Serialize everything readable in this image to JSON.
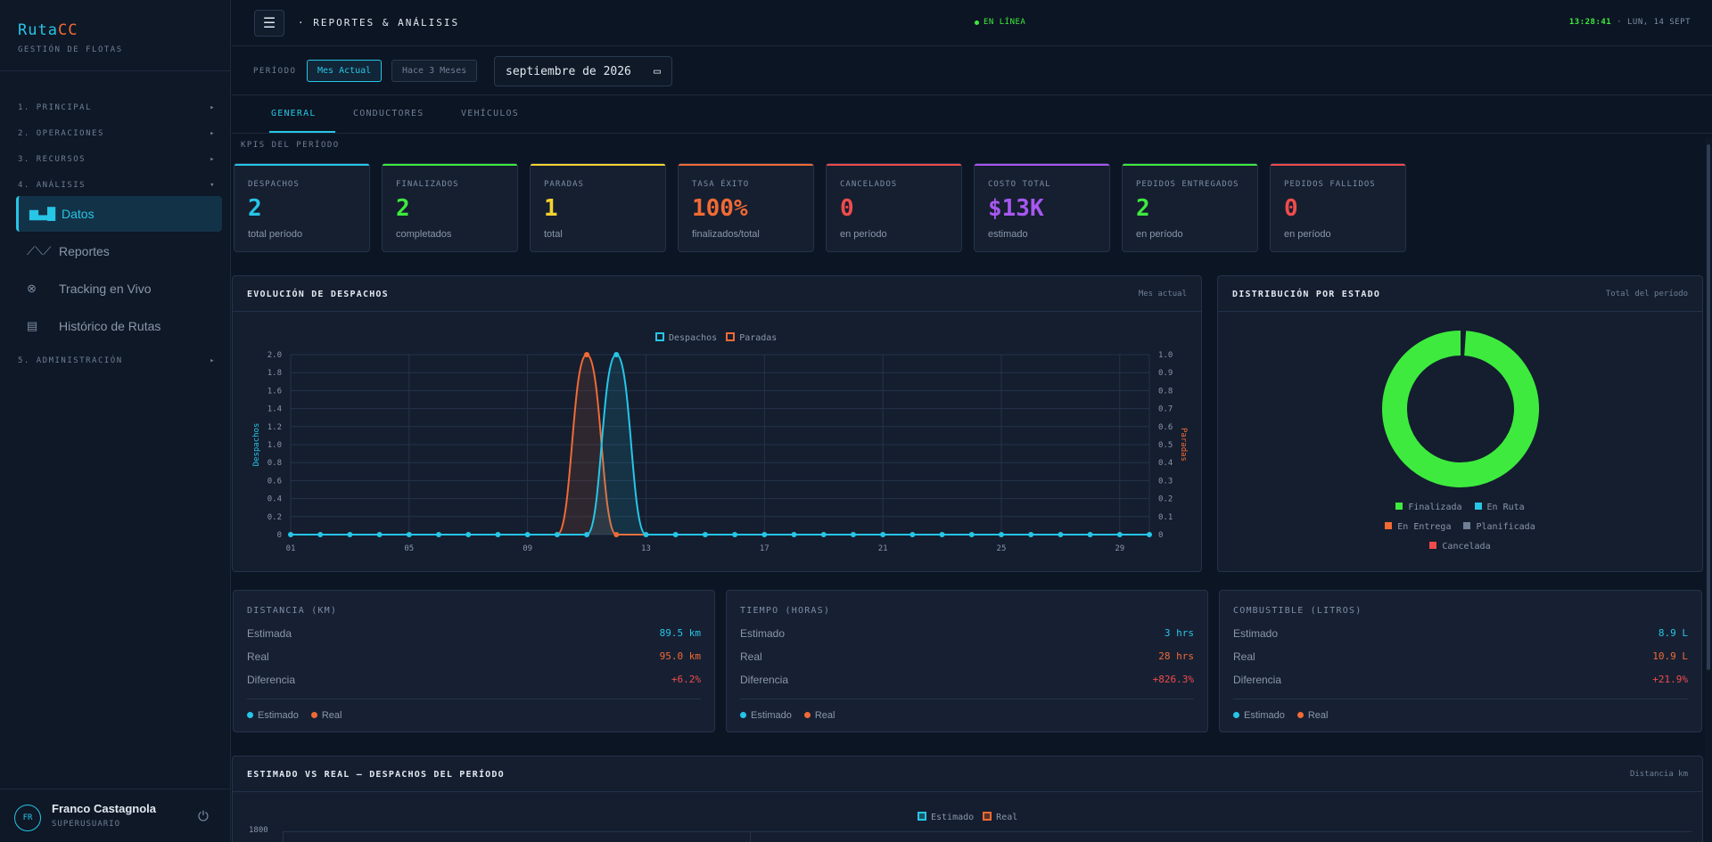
{
  "brand": {
    "name_a": "Ruta",
    "name_b": "CC",
    "subtitle": "GESTIÓN DE FLOTAS"
  },
  "sidebar": {
    "sections": [
      {
        "label": "1. PRINCIPAL",
        "arrow": "▸"
      },
      {
        "label": "2. OPERACIONES",
        "arrow": "▸"
      },
      {
        "label": "3. RECURSOS",
        "arrow": "▸"
      },
      {
        "label": "4. ANÁLISIS",
        "arrow": "▾"
      },
      {
        "label": "5. ADMINISTRACIÓN",
        "arrow": "▸"
      }
    ],
    "items": [
      {
        "label": "Datos",
        "icon": "bar-chart-icon",
        "active": true
      },
      {
        "label": "Reportes",
        "icon": "line-chart-icon",
        "active": false
      },
      {
        "label": "Tracking en Vivo",
        "icon": "satellite-icon",
        "active": false
      },
      {
        "label": "Histórico de Rutas",
        "icon": "map-icon",
        "active": false
      }
    ],
    "user": {
      "initials": "FR",
      "name": "Franco Castagnola",
      "role": "SUPERUSUARIO"
    }
  },
  "header": {
    "menu_icon": "☰",
    "title": "· REPORTES & ANÁLISIS",
    "status": "EN LÍNEA",
    "time": "13:28:41",
    "date": "· LUN, 14 SEPT"
  },
  "filters": {
    "period_label": "PERÍODO",
    "btn_current": "Mes Actual",
    "btn_3m": "Hace 3 Meses",
    "date_value": "septiembre de 2026"
  },
  "tabs": [
    "GENERAL",
    "CONDUCTORES",
    "VEHÍCULOS"
  ],
  "kpi_section_label": "KPIS DEL PERÍODO",
  "kpis": [
    {
      "label": "DESPACHOS",
      "value": "2",
      "sub": "total período",
      "color": "#27c5e6"
    },
    {
      "label": "FINALIZADOS",
      "value": "2",
      "sub": "completados",
      "color": "#3eea3e"
    },
    {
      "label": "PARADAS",
      "value": "1",
      "sub": "total",
      "color": "#f5d130"
    },
    {
      "label": "TASA ÉXITO",
      "value": "100%",
      "sub": "finalizados/total",
      "color": "#f06a35"
    },
    {
      "label": "CANCELADOS",
      "value": "0",
      "sub": "en período",
      "color": "#f04b4b"
    },
    {
      "label": "COSTO TOTAL",
      "value": "$13K",
      "sub": "estimado",
      "color": "#a857f0"
    },
    {
      "label": "PEDIDOS ENTREGADOS",
      "value": "2",
      "sub": "en período",
      "color": "#3eea3e"
    },
    {
      "label": "PEDIDOS FALLIDOS",
      "value": "0",
      "sub": "en período",
      "color": "#f04b4b"
    }
  ],
  "evolution": {
    "title": "EVOLUCIÓN DE DESPACHOS",
    "right": "Mes actual"
  },
  "distribution": {
    "title": "DISTRIBUCIÓN POR ESTADO",
    "right": "Total del período"
  },
  "metrics": [
    {
      "title": "DISTANCIA (KM)",
      "rows": [
        {
          "label": "Estimada",
          "value": "89.5 km",
          "color": "#27c5e6"
        },
        {
          "label": "Real",
          "value": "95.0 km",
          "color": "#f06a35"
        },
        {
          "label": "Diferencia",
          "value": "+6.2%",
          "color": "#f04b4b"
        }
      ],
      "legend": [
        "Estimado",
        "Real"
      ]
    },
    {
      "title": "TIEMPO (HORAS)",
      "rows": [
        {
          "label": "Estimado",
          "value": "3 hrs",
          "color": "#27c5e6"
        },
        {
          "label": "Real",
          "value": "28 hrs",
          "color": "#f06a35"
        },
        {
          "label": "Diferencia",
          "value": "+826.3%",
          "color": "#f04b4b"
        }
      ],
      "legend": [
        "Estimado",
        "Real"
      ]
    },
    {
      "title": "COMBUSTIBLE (LITROS)",
      "rows": [
        {
          "label": "Estimado",
          "value": "8.9 L",
          "color": "#27c5e6"
        },
        {
          "label": "Real",
          "value": "10.9 L",
          "color": "#f06a35"
        },
        {
          "label": "Diferencia",
          "value": "+21.9%",
          "color": "#f04b4b"
        }
      ],
      "legend": [
        "Estimado",
        "Real"
      ]
    }
  ],
  "comparison": {
    "title": "ESTIMADO VS REAL — DESPACHOS DEL PERÍODO",
    "right": "Distancia km"
  },
  "chart_data": [
    {
      "type": "line",
      "title": "",
      "xlabel": "",
      "x": [
        "01",
        "02",
        "03",
        "04",
        "05",
        "06",
        "07",
        "08",
        "09",
        "10",
        "11",
        "12",
        "13",
        "14",
        "15",
        "16",
        "17",
        "18",
        "19",
        "20",
        "21",
        "22",
        "23",
        "24",
        "25",
        "26",
        "27",
        "28",
        "29",
        "30"
      ],
      "x_tick_labels": [
        "01",
        "05",
        "09",
        "13",
        "17",
        "21",
        "25",
        "29"
      ],
      "series": [
        {
          "name": "Despachos",
          "axis": "left",
          "color": "#27c5e6",
          "values": [
            0,
            0,
            0,
            0,
            0,
            0,
            0,
            0,
            0,
            0,
            0,
            2,
            0,
            0,
            0,
            0,
            0,
            0,
            0,
            0,
            0,
            0,
            0,
            0,
            0,
            0,
            0,
            0,
            0,
            0
          ]
        },
        {
          "name": "Paradas",
          "axis": "right",
          "color": "#f06a35",
          "values": [
            0,
            0,
            0,
            0,
            0,
            0,
            0,
            0,
            0,
            0,
            1,
            0,
            0,
            0,
            0,
            0,
            0,
            0,
            0,
            0,
            0,
            0,
            0,
            0,
            0,
            0,
            0,
            0,
            0,
            0
          ]
        }
      ],
      "y_left": {
        "label": "Despachos",
        "range": [
          0,
          2.0
        ],
        "ticks": [
          "0",
          "0.2",
          "0.4",
          "0.6",
          "0.8",
          "1.0",
          "1.2",
          "1.4",
          "1.6",
          "1.8",
          "2.0"
        ]
      },
      "y_right": {
        "label": "Paradas",
        "range": [
          0,
          1.0
        ],
        "ticks": [
          "0",
          "0.1",
          "0.2",
          "0.3",
          "0.4",
          "0.5",
          "0.6",
          "0.7",
          "0.8",
          "0.9",
          "1.0"
        ]
      },
      "grid": true,
      "legend": "top-center"
    },
    {
      "type": "pie",
      "title": "",
      "donut": true,
      "categories": [
        "Finalizada",
        "En Ruta",
        "En Entrega",
        "Planificada",
        "Cancelada"
      ],
      "values": [
        2,
        0,
        0,
        0,
        0
      ],
      "colors": [
        "#3eea3e",
        "#27c5e6",
        "#f06a35",
        "#6f7f95",
        "#f04b4b"
      ],
      "legend": "bottom"
    },
    {
      "type": "bar",
      "title": "",
      "series": [
        {
          "name": "Estimado",
          "color": "#27c5e6"
        },
        {
          "name": "Real",
          "color": "#f06a35"
        }
      ],
      "y_visible_ticks": [
        "1800"
      ],
      "legend": "top-center"
    }
  ]
}
